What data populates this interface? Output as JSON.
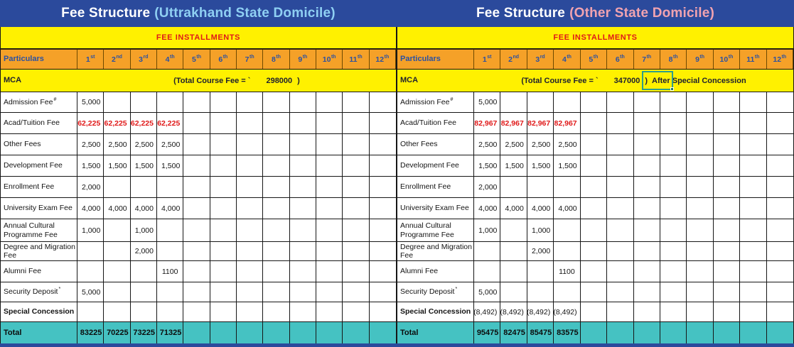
{
  "colors": {
    "banner_blue": "#2b4a9c",
    "band_yellow": "#fff100",
    "header_orange": "#f5a128",
    "total_teal": "#45c2c2",
    "accent_red": "#e01919",
    "accent_blue": "#2a51a3",
    "uttrakhand_title": "#8fd0f3",
    "other_state_title": "#f1a3b0",
    "selection_outline": "#2f9e8a"
  },
  "tables": [
    {
      "id": "uttrakhand-state-domicile",
      "title_main": "Fee Structure",
      "title_region": "(Uttrakhand State Domicile)",
      "title_color": "#8fd0f3",
      "installments_header": "FEE INSTALLMENTS",
      "particulars_label": "Particulars",
      "columns": [
        {
          "n": "1",
          "suffix": "st"
        },
        {
          "n": "2",
          "suffix": "nd"
        },
        {
          "n": "3",
          "suffix": "rd"
        },
        {
          "n": "4",
          "suffix": "th"
        },
        {
          "n": "5",
          "suffix": "th"
        },
        {
          "n": "6",
          "suffix": "th"
        },
        {
          "n": "7",
          "suffix": "th"
        },
        {
          "n": "8",
          "suffix": "th"
        },
        {
          "n": "9",
          "suffix": "th"
        },
        {
          "n": "10",
          "suffix": "th"
        },
        {
          "n": "11",
          "suffix": "th"
        },
        {
          "n": "12",
          "suffix": "th"
        }
      ],
      "course": {
        "name": "MCA",
        "fee_label": "(Total Course Fee = `",
        "fee_value": "298000",
        "fee_close": ")",
        "fee_note": "",
        "selected_cell": false
      },
      "rows": [
        {
          "label": "Admission Fee",
          "sup": "#",
          "values": [
            "5,000",
            "",
            "",
            ""
          ]
        },
        {
          "label": "Acad/Tuition Fee",
          "color": "red",
          "values": [
            "62,225",
            "62,225",
            "62,225",
            "62,225"
          ]
        },
        {
          "label": "Other Fees",
          "values": [
            "2,500",
            "2,500",
            "2,500",
            "2,500"
          ]
        },
        {
          "label": "Development Fee",
          "values": [
            "1,500",
            "1,500",
            "1,500",
            "1,500"
          ]
        },
        {
          "label": "Enrollment Fee",
          "values": [
            "2,000",
            "",
            "",
            ""
          ]
        },
        {
          "label": "University Exam Fee",
          "values": [
            "4,000",
            "4,000",
            "4,000",
            "4,000"
          ]
        },
        {
          "label": "Annual Cultural Programme Fee",
          "values": [
            "1,000",
            "",
            "1,000",
            ""
          ]
        },
        {
          "label": "Degree and Migration Fee",
          "values": [
            "",
            "",
            "2,000",
            ""
          ]
        },
        {
          "label": "Alumni Fee",
          "align": "center",
          "values": [
            "",
            "",
            "",
            "1100"
          ]
        },
        {
          "label": "Security Deposit",
          "sup": "*",
          "values": [
            "5,000",
            "",
            "",
            ""
          ]
        },
        {
          "label": "Special Concession",
          "bold_label": true,
          "values": [
            "",
            "",
            "",
            ""
          ]
        }
      ],
      "total": {
        "label": "Total",
        "values": [
          "83225",
          "70225",
          "73225",
          "71325"
        ]
      }
    },
    {
      "id": "other-state-domicile",
      "title_main": "Fee Structure",
      "title_region": "(Other State Domicile)",
      "title_color": "#f1a3b0",
      "installments_header": "FEE INSTALLMENTS",
      "particulars_label": "Particulars",
      "columns": [
        {
          "n": "1",
          "suffix": "st"
        },
        {
          "n": "2",
          "suffix": "nd"
        },
        {
          "n": "3",
          "suffix": "rd"
        },
        {
          "n": "4",
          "suffix": "th"
        },
        {
          "n": "5",
          "suffix": "th"
        },
        {
          "n": "6",
          "suffix": "th"
        },
        {
          "n": "7",
          "suffix": "th"
        },
        {
          "n": "8",
          "suffix": "th"
        },
        {
          "n": "9",
          "suffix": "th"
        },
        {
          "n": "10",
          "suffix": "th"
        },
        {
          "n": "11",
          "suffix": "th"
        },
        {
          "n": "12",
          "suffix": "th"
        }
      ],
      "course": {
        "name": "MCA",
        "fee_label": "(Total Course Fee = `",
        "fee_value": "347000",
        "fee_close": ")",
        "fee_note": "After Special Concession",
        "selected_cell": true
      },
      "rows": [
        {
          "label": "Admission Fee",
          "sup": "#",
          "values": [
            "5,000",
            "",
            "",
            ""
          ]
        },
        {
          "label": "Acad/Tuition Fee",
          "color": "red",
          "values": [
            "82,967",
            "82,967",
            "82,967",
            "82,967"
          ]
        },
        {
          "label": "Other Fees",
          "values": [
            "2,500",
            "2,500",
            "2,500",
            "2,500"
          ]
        },
        {
          "label": "Development Fee",
          "values": [
            "1,500",
            "1,500",
            "1,500",
            "1,500"
          ]
        },
        {
          "label": "Enrollment Fee",
          "values": [
            "2,000",
            "",
            "",
            ""
          ]
        },
        {
          "label": "University Exam Fee",
          "values": [
            "4,000",
            "4,000",
            "4,000",
            "4,000"
          ]
        },
        {
          "label": "Annual Cultural Programme Fee",
          "values": [
            "1,000",
            "",
            "1,000",
            ""
          ]
        },
        {
          "label": "Degree and Migration Fee",
          "values": [
            "",
            "",
            "2,000",
            ""
          ]
        },
        {
          "label": "Alumni Fee",
          "align": "center",
          "values": [
            "",
            "",
            "",
            "1100"
          ]
        },
        {
          "label": "Security Deposit",
          "sup": "*",
          "values": [
            "5,000",
            "",
            "",
            ""
          ]
        },
        {
          "label": "Special Concession",
          "bold_label": true,
          "values": [
            "(8,492)",
            "(8,492)",
            "(8,492)",
            "(8,492)"
          ]
        }
      ],
      "total": {
        "label": "Total",
        "values": [
          "95475",
          "82475",
          "85475",
          "83575"
        ]
      }
    }
  ]
}
